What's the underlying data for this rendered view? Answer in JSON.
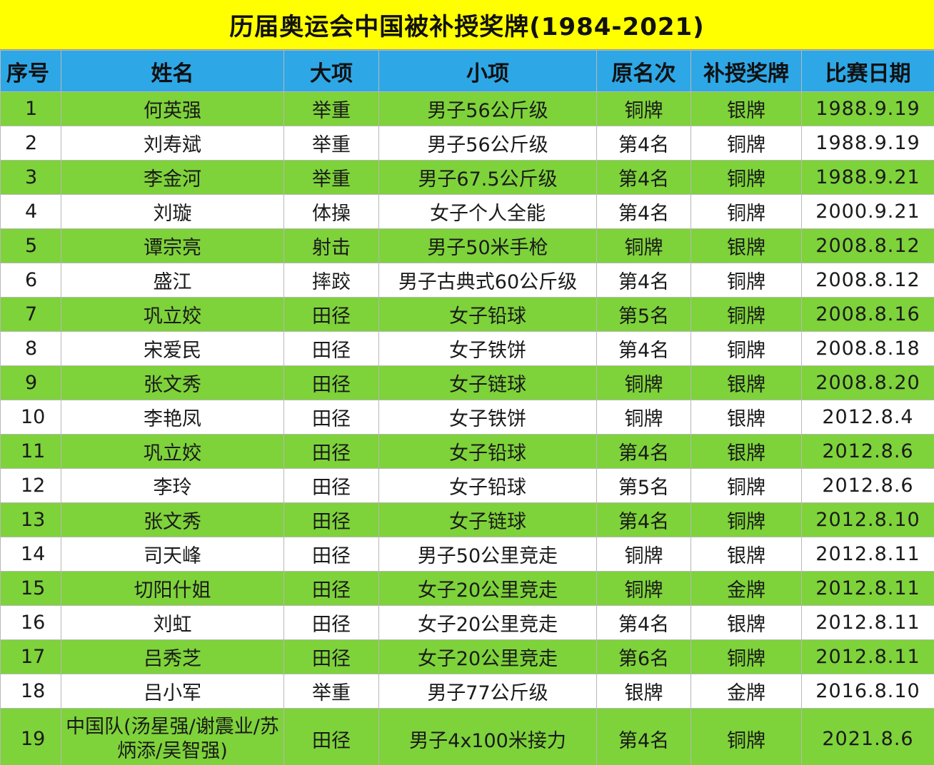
{
  "title": "历届奥运会中国被补授奖牌(1984-2021)",
  "colors": {
    "title_bg": "#ffff00",
    "header_bg": "#2ea7e6",
    "row_green": "#7ed23a",
    "row_white": "#ffffff"
  },
  "headers": [
    "序号",
    "姓名",
    "大项",
    "小项",
    "原名次",
    "补授奖牌",
    "比赛日期"
  ],
  "rows": [
    [
      "1",
      "何英强",
      "举重",
      "男子56公斤级",
      "铜牌",
      "银牌",
      "1988.9.19"
    ],
    [
      "2",
      "刘寿斌",
      "举重",
      "男子56公斤级",
      "第4名",
      "铜牌",
      "1988.9.19"
    ],
    [
      "3",
      "李金河",
      "举重",
      "男子67.5公斤级",
      "第4名",
      "铜牌",
      "1988.9.21"
    ],
    [
      "4",
      "刘璇",
      "体操",
      "女子个人全能",
      "第4名",
      "铜牌",
      "2000.9.21"
    ],
    [
      "5",
      "谭宗亮",
      "射击",
      "男子50米手枪",
      "铜牌",
      "银牌",
      "2008.8.12"
    ],
    [
      "6",
      "盛江",
      "摔跤",
      "男子古典式60公斤级",
      "第4名",
      "铜牌",
      "2008.8.12"
    ],
    [
      "7",
      "巩立姣",
      "田径",
      "女子铅球",
      "第5名",
      "铜牌",
      "2008.8.16"
    ],
    [
      "8",
      "宋爱民",
      "田径",
      "女子铁饼",
      "第4名",
      "铜牌",
      "2008.8.18"
    ],
    [
      "9",
      "张文秀",
      "田径",
      "女子链球",
      "铜牌",
      "银牌",
      "2008.8.20"
    ],
    [
      "10",
      "李艳凤",
      "田径",
      "女子铁饼",
      "铜牌",
      "银牌",
      "2012.8.4"
    ],
    [
      "11",
      "巩立姣",
      "田径",
      "女子铅球",
      "第4名",
      "银牌",
      "2012.8.6"
    ],
    [
      "12",
      "李玲",
      "田径",
      "女子铅球",
      "第5名",
      "铜牌",
      "2012.8.6"
    ],
    [
      "13",
      "张文秀",
      "田径",
      "女子链球",
      "第4名",
      "铜牌",
      "2012.8.10"
    ],
    [
      "14",
      "司天峰",
      "田径",
      "男子50公里竞走",
      "铜牌",
      "银牌",
      "2012.8.11"
    ],
    [
      "15",
      "切阳什姐",
      "田径",
      "女子20公里竞走",
      "铜牌",
      "金牌",
      "2012.8.11"
    ],
    [
      "16",
      "刘虹",
      "田径",
      "女子20公里竞走",
      "第4名",
      "银牌",
      "2012.8.11"
    ],
    [
      "17",
      "吕秀芝",
      "田径",
      "女子20公里竞走",
      "第6名",
      "铜牌",
      "2012.8.11"
    ],
    [
      "18",
      "吕小军",
      "举重",
      "男子77公斤级",
      "银牌",
      "金牌",
      "2016.8.10"
    ],
    [
      "19",
      "中国队(汤星强/谢震业/苏炳添/吴智强)",
      "田径",
      "男子4x100米接力",
      "第4名",
      "铜牌",
      "2021.8.6"
    ]
  ]
}
